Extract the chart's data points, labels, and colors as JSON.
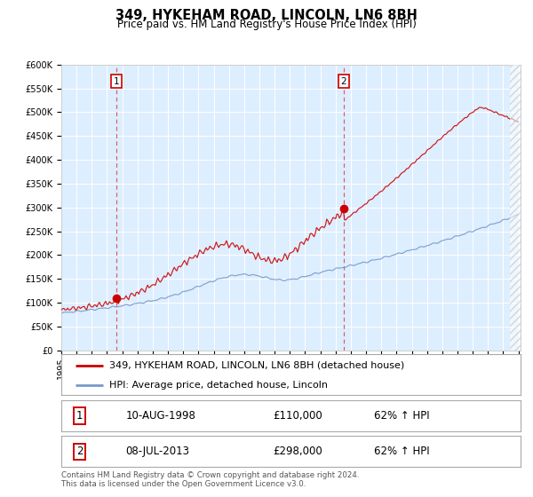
{
  "title": "349, HYKEHAM ROAD, LINCOLN, LN6 8BH",
  "subtitle": "Price paid vs. HM Land Registry's House Price Index (HPI)",
  "ylim": [
    0,
    600000
  ],
  "yticks": [
    0,
    50000,
    100000,
    150000,
    200000,
    250000,
    300000,
    350000,
    400000,
    450000,
    500000,
    550000,
    600000
  ],
  "ytick_labels": [
    "£0",
    "£50K",
    "£100K",
    "£150K",
    "£200K",
    "£250K",
    "£300K",
    "£350K",
    "£400K",
    "£450K",
    "£500K",
    "£550K",
    "£600K"
  ],
  "year_start": 1995,
  "year_end": 2025,
  "sale1_year": 1998.62,
  "sale1_price": 110000,
  "sale1_label": "1",
  "sale2_year": 2013.52,
  "sale2_price": 298000,
  "sale2_label": "2",
  "red_line_color": "#cc0000",
  "blue_line_color": "#7799cc",
  "dashed_line_color": "#dd4444",
  "sale_marker_color": "#cc0000",
  "bg_color": "#ddeeff",
  "grid_color": "#ffffff",
  "legend_label_red": "349, HYKEHAM ROAD, LINCOLN, LN6 8BH (detached house)",
  "legend_label_blue": "HPI: Average price, detached house, Lincoln",
  "table_row1": [
    "1",
    "10-AUG-1998",
    "£110,000",
    "62% ↑ HPI"
  ],
  "table_row2": [
    "2",
    "08-JUL-2013",
    "£298,000",
    "62% ↑ HPI"
  ],
  "footnote": "Contains HM Land Registry data © Crown copyright and database right 2024.\nThis data is licensed under the Open Government Licence v3.0.",
  "title_fontsize": 10.5,
  "subtitle_fontsize": 8.5,
  "tick_fontsize": 7,
  "legend_fontsize": 8,
  "table_fontsize": 8.5
}
